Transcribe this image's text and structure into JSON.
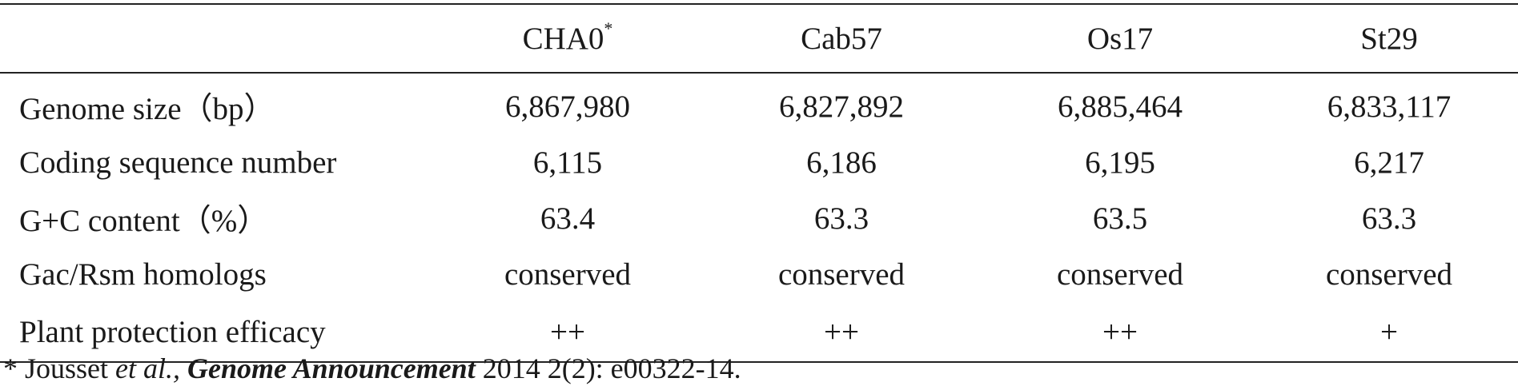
{
  "table": {
    "headers": [
      "",
      "CHA0",
      "Cab57",
      "Os17",
      "St29"
    ],
    "header_superscript": "*",
    "rows": [
      {
        "label": "Genome size（bp）",
        "values": [
          "6,867,980",
          "6,827,892",
          "6,885,464",
          "6,833,117"
        ]
      },
      {
        "label": "Coding sequence number",
        "values": [
          "6,115",
          "6,186",
          "6,195",
          "6,217"
        ]
      },
      {
        "label": "G+C content（%）",
        "values": [
          "63.4",
          "63.3",
          "63.5",
          "63.3"
        ]
      },
      {
        "label": "Gac/Rsm homologs",
        "values": [
          "conserved",
          "conserved",
          "conserved",
          "conserved"
        ]
      },
      {
        "label": "Plant protection efficacy",
        "values": [
          "++",
          "++",
          "++",
          "+"
        ]
      }
    ]
  },
  "footnote": {
    "marker": "* Jousset ",
    "authors_suffix": "et al.,",
    "journal": "Genome Announcement",
    "citation": " 2014 2(2): e00322-14."
  }
}
